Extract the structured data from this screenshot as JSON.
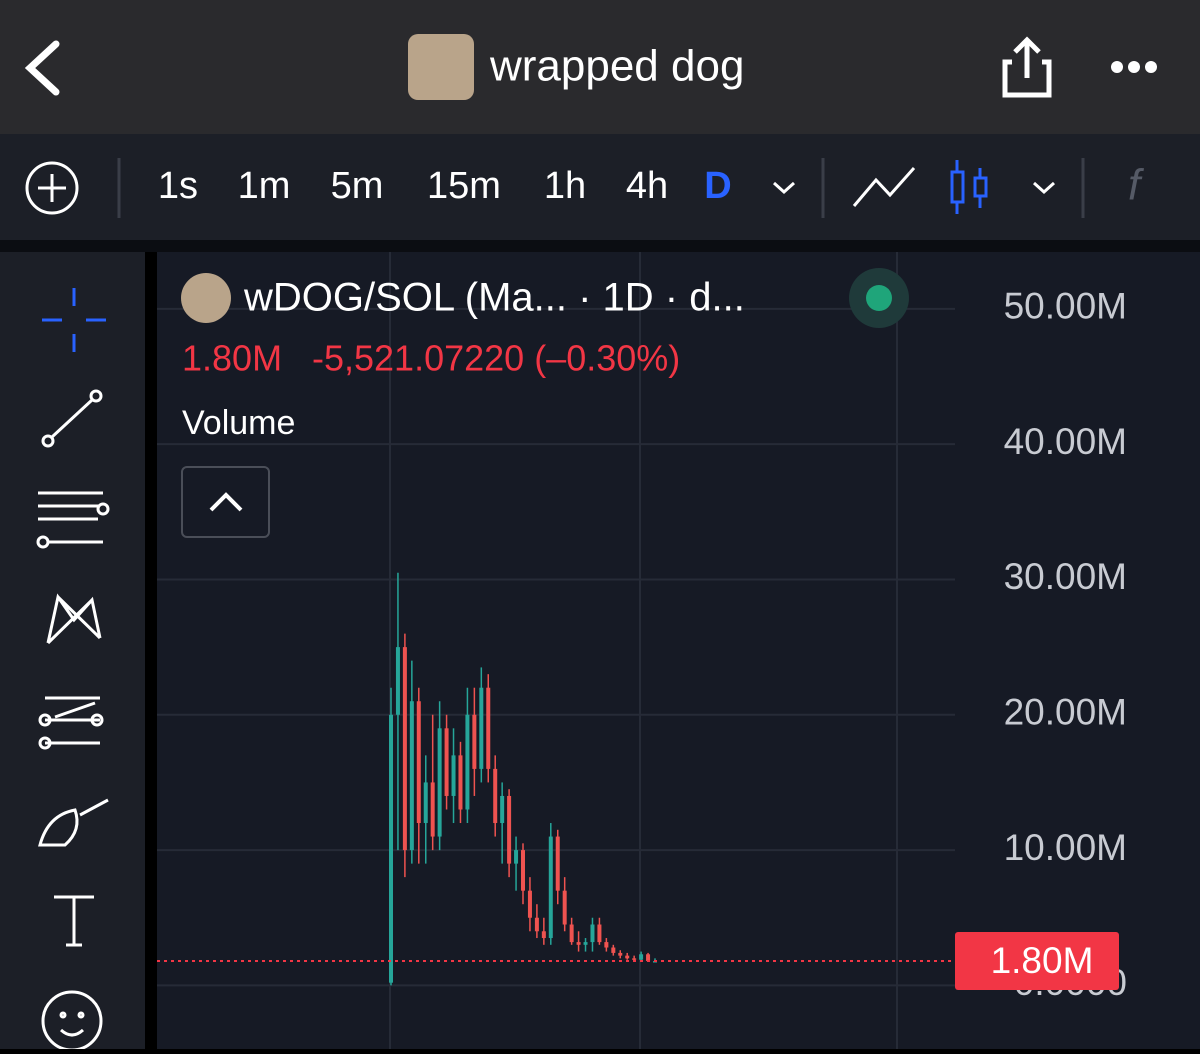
{
  "header": {
    "title": "wrapped dog"
  },
  "toolbar": {
    "intervals": [
      "1s",
      "1m",
      "5m",
      "15m",
      "1h",
      "4h",
      "D"
    ]
  },
  "legend": {
    "symbol": "wDOG/SOL (Ma... · 1D · d...",
    "price": "1.80M",
    "change": "-5,521.07220 (–0.30%)",
    "study": "Volume"
  },
  "chart_data": {
    "type": "candlestick",
    "up_color": "#26a69a",
    "down_color": "#ef5350",
    "series": [
      {
        "name": "open",
        "values": [
          0.2,
          20,
          25,
          10,
          21,
          12,
          15,
          11,
          19,
          14,
          17,
          13,
          20,
          16,
          22,
          16,
          12,
          14,
          9,
          10,
          7,
          5,
          4,
          3.5,
          11,
          7,
          4.5,
          3.2,
          3,
          3.2,
          4.5,
          3.2,
          2.8,
          2.4,
          2.2,
          2.0,
          1.9,
          2.3,
          1.8
        ]
      },
      {
        "name": "high",
        "values": [
          22,
          30.5,
          26,
          24,
          22,
          17,
          20,
          21,
          20,
          19,
          18,
          22,
          22,
          23.5,
          23,
          17,
          15,
          14.5,
          11,
          10.5,
          8,
          6,
          5,
          12,
          11.5,
          8,
          5,
          4,
          3.5,
          5,
          5,
          3.5,
          3,
          2.6,
          2.4,
          2.2,
          2.5,
          2.4,
          2.0
        ]
      },
      {
        "name": "low",
        "values": [
          0,
          10,
          8,
          9,
          9,
          9,
          10,
          10,
          13,
          12,
          12,
          12,
          14,
          15,
          15,
          11,
          9,
          8,
          7,
          6,
          4,
          3.5,
          3,
          3,
          6,
          4,
          3,
          2.5,
          2.5,
          2.5,
          3,
          2.5,
          2.2,
          2.0,
          1.9,
          1.8,
          1.8,
          1.8,
          1.7
        ]
      },
      {
        "name": "close",
        "values": [
          20,
          25,
          10,
          21,
          12,
          15,
          11,
          19,
          14,
          17,
          13,
          20,
          16,
          22,
          16,
          12,
          14,
          9,
          10,
          7,
          5,
          4,
          3.5,
          11,
          7,
          4.5,
          3.2,
          3,
          3.2,
          4.5,
          3.2,
          2.8,
          2.4,
          2.2,
          2.0,
          1.9,
          2.3,
          1.8,
          1.8
        ]
      }
    ],
    "ylim": [
      -4.7,
      54.2
    ],
    "yticks": [
      {
        "value": 0,
        "label": "0.0000"
      },
      {
        "value": 10,
        "label": "10.00M"
      },
      {
        "value": 20,
        "label": "20.00M"
      },
      {
        "value": 30,
        "label": "30.00M"
      },
      {
        "value": 40,
        "label": "40.00M"
      },
      {
        "value": 50,
        "label": "50.00M"
      }
    ],
    "grid": true,
    "last_price": {
      "value": 1.8,
      "label": "1.80M"
    }
  }
}
